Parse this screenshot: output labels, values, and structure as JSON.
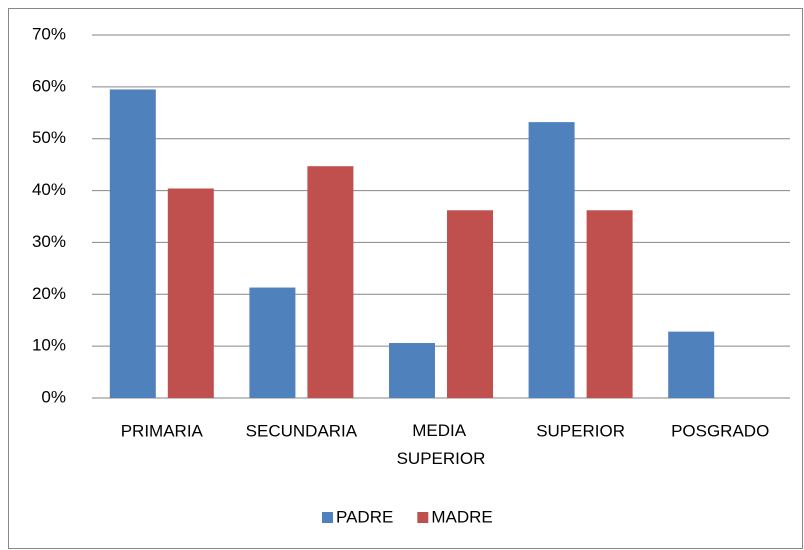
{
  "chart_data": {
    "type": "bar",
    "categories": [
      "PRIMARIA",
      "SECUNDARIA",
      "MEDIA SUPERIOR",
      "SUPERIOR",
      "POSGRADO"
    ],
    "series": [
      {
        "name": "PADRE",
        "color": "#4f81bd",
        "values": [
          59.5,
          21.3,
          10.6,
          53.2,
          12.8
        ]
      },
      {
        "name": "MADRE",
        "color": "#c0504d",
        "values": [
          40.4,
          44.7,
          36.2,
          36.2,
          0
        ]
      }
    ],
    "ylim": [
      0,
      70
    ],
    "yticks": [
      {
        "value": 0,
        "label": "0%"
      },
      {
        "value": 10,
        "label": "10%"
      },
      {
        "value": 20,
        "label": "20%"
      },
      {
        "value": 30,
        "label": "30%"
      },
      {
        "value": 40,
        "label": "40%"
      },
      {
        "value": 50,
        "label": "50%"
      },
      {
        "value": 60,
        "label": "60%"
      },
      {
        "value": 70,
        "label": "70%"
      }
    ],
    "grid": true,
    "legend": "bottom"
  }
}
